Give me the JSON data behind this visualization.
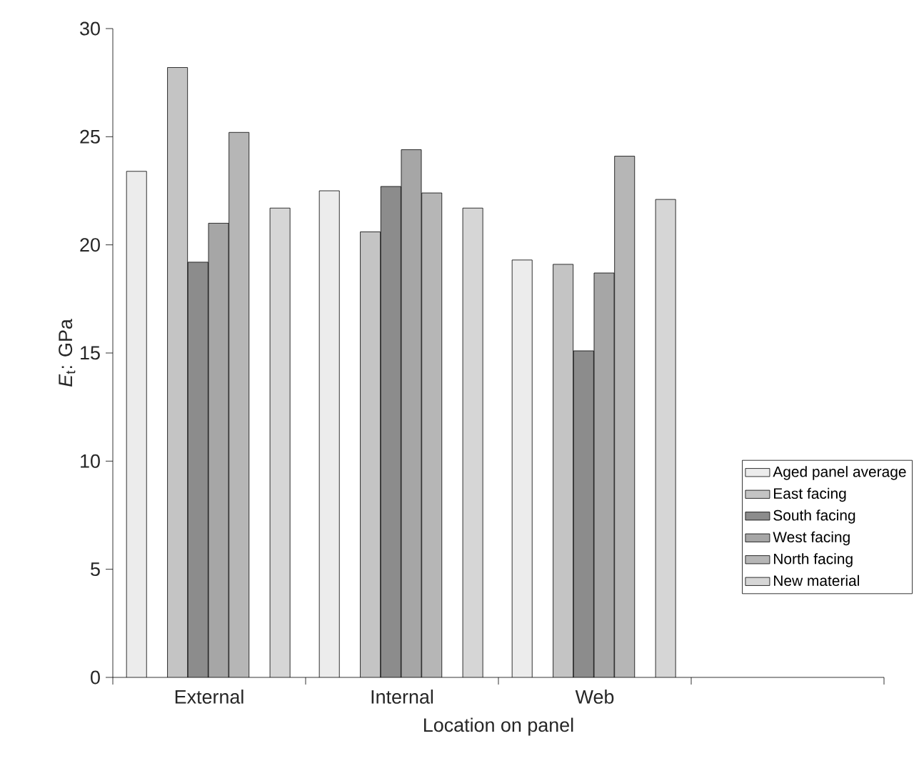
{
  "chart_data": {
    "type": "bar",
    "xlabel": "Location on panel",
    "ylabel": "*E*$_{t}$: GPa",
    "categories": [
      "External",
      "Internal",
      "Web",
      null
    ],
    "series": [
      {
        "name": "Aged panel average",
        "color": "#ececec",
        "values": [
          23.4,
          22.5,
          19.3,
          null
        ]
      },
      {
        "name": "East facing",
        "color": "#c4c4c4",
        "values": [
          28.2,
          20.6,
          19.1,
          null
        ]
      },
      {
        "name": "South facing",
        "color": "#8c8c8c",
        "values": [
          19.2,
          22.7,
          15.1,
          null
        ]
      },
      {
        "name": "West facing",
        "color": "#a6a6a6",
        "values": [
          21.0,
          24.4,
          18.7,
          null
        ]
      },
      {
        "name": "North facing",
        "color": "#b6b6b6",
        "values": [
          25.2,
          22.4,
          24.1,
          null
        ]
      },
      {
        "name": "New material",
        "color": "#d6d6d6",
        "values": [
          21.7,
          21.7,
          22.1,
          null
        ]
      }
    ],
    "ylim": [
      0,
      30
    ],
    "yticks": [
      0,
      5,
      10,
      15,
      20,
      25,
      30
    ],
    "grid": false,
    "legend": "bottom right"
  }
}
